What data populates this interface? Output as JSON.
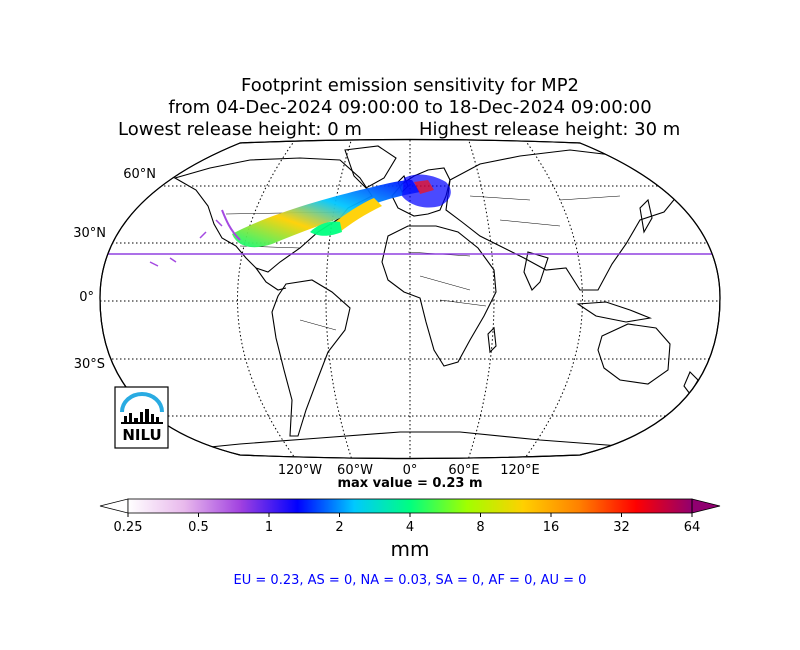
{
  "title": {
    "line1": "Footprint emission sensitivity for MP2",
    "line2": "from 04-Dec-2024 09:00:00 to 18-Dec-2024 09:00:00",
    "line3_left": "Lowest release height: 0 m",
    "line3_right": "Highest release height: 30 m"
  },
  "map": {
    "projection": "robinson",
    "lat_labels": [
      "60°N",
      "30°N",
      "0°",
      "30°S"
    ],
    "lon_labels": [
      "120°W",
      "60°W",
      "0°",
      "60°E",
      "120°E"
    ],
    "logo_text": "NILU",
    "max_value_label": "max value = 0.23 m"
  },
  "colorbar": {
    "ticks": [
      "0.25",
      "0.5",
      "1",
      "2",
      "4",
      "8",
      "16",
      "32",
      "64"
    ],
    "unit": "mm",
    "colors": [
      "#ffffff",
      "#e8b8ec",
      "#a040e0",
      "#0000ff",
      "#00c8ff",
      "#00ff80",
      "#a0ff00",
      "#ffd000",
      "#ff8000",
      "#ff0000",
      "#900070"
    ]
  },
  "summary": {
    "text": "EU = 0.23,  AS = 0,  NA = 0.03,  SA = 0,  AF = 0,  AU = 0",
    "color": "#0000ff"
  }
}
